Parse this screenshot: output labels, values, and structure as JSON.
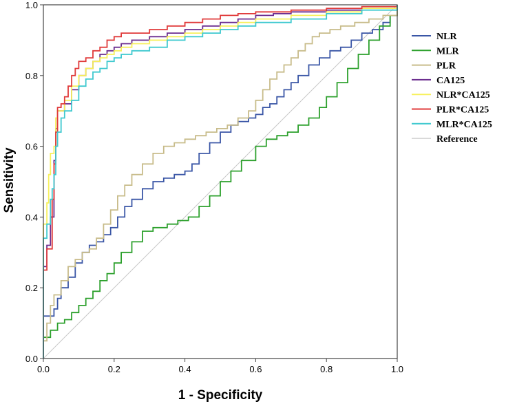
{
  "chart_data": {
    "type": "line",
    "title": "",
    "xlabel": "1 - Specificity",
    "ylabel": "Sensitivity",
    "xlim": [
      0,
      1
    ],
    "ylim": [
      0,
      1
    ],
    "x_ticks": [
      "0.0",
      "0.2",
      "0.4",
      "0.6",
      "0.8",
      "1.0"
    ],
    "y_ticks": [
      "0.0",
      "0.2",
      "0.4",
      "0.6",
      "0.8",
      "1.0"
    ],
    "grid": false,
    "legend_position": "right",
    "series": [
      {
        "name": "NLR",
        "color": "#3a56a6",
        "points": [
          [
            0,
            0
          ],
          [
            0,
            0.12
          ],
          [
            0.02,
            0.12
          ],
          [
            0.03,
            0.14
          ],
          [
            0.04,
            0.17
          ],
          [
            0.05,
            0.2
          ],
          [
            0.07,
            0.23
          ],
          [
            0.09,
            0.27
          ],
          [
            0.11,
            0.3
          ],
          [
            0.13,
            0.32
          ],
          [
            0.15,
            0.33
          ],
          [
            0.17,
            0.35
          ],
          [
            0.19,
            0.37
          ],
          [
            0.21,
            0.4
          ],
          [
            0.23,
            0.43
          ],
          [
            0.25,
            0.45
          ],
          [
            0.28,
            0.48
          ],
          [
            0.31,
            0.5
          ],
          [
            0.34,
            0.51
          ],
          [
            0.37,
            0.52
          ],
          [
            0.4,
            0.53
          ],
          [
            0.42,
            0.55
          ],
          [
            0.44,
            0.58
          ],
          [
            0.47,
            0.61
          ],
          [
            0.5,
            0.64
          ],
          [
            0.53,
            0.66
          ],
          [
            0.55,
            0.67
          ],
          [
            0.58,
            0.68
          ],
          [
            0.6,
            0.69
          ],
          [
            0.62,
            0.71
          ],
          [
            0.64,
            0.72
          ],
          [
            0.66,
            0.74
          ],
          [
            0.68,
            0.76
          ],
          [
            0.7,
            0.78
          ],
          [
            0.72,
            0.8
          ],
          [
            0.75,
            0.83
          ],
          [
            0.78,
            0.85
          ],
          [
            0.81,
            0.87
          ],
          [
            0.84,
            0.88
          ],
          [
            0.87,
            0.9
          ],
          [
            0.9,
            0.92
          ],
          [
            0.93,
            0.93
          ],
          [
            0.96,
            0.95
          ],
          [
            0.98,
            0.97
          ],
          [
            1,
            0.98
          ]
        ]
      },
      {
        "name": "MLR",
        "color": "#2ca02c",
        "points": [
          [
            0,
            0
          ],
          [
            0,
            0.06
          ],
          [
            0.02,
            0.08
          ],
          [
            0.04,
            0.1
          ],
          [
            0.06,
            0.11
          ],
          [
            0.08,
            0.13
          ],
          [
            0.1,
            0.15
          ],
          [
            0.12,
            0.17
          ],
          [
            0.14,
            0.19
          ],
          [
            0.16,
            0.22
          ],
          [
            0.18,
            0.24
          ],
          [
            0.2,
            0.27
          ],
          [
            0.22,
            0.3
          ],
          [
            0.25,
            0.33
          ],
          [
            0.28,
            0.36
          ],
          [
            0.31,
            0.37
          ],
          [
            0.35,
            0.38
          ],
          [
            0.38,
            0.39
          ],
          [
            0.41,
            0.4
          ],
          [
            0.44,
            0.43
          ],
          [
            0.47,
            0.46
          ],
          [
            0.5,
            0.5
          ],
          [
            0.53,
            0.53
          ],
          [
            0.56,
            0.56
          ],
          [
            0.6,
            0.6
          ],
          [
            0.63,
            0.62
          ],
          [
            0.66,
            0.63
          ],
          [
            0.69,
            0.64
          ],
          [
            0.72,
            0.66
          ],
          [
            0.75,
            0.68
          ],
          [
            0.78,
            0.71
          ],
          [
            0.8,
            0.74
          ],
          [
            0.83,
            0.78
          ],
          [
            0.86,
            0.82
          ],
          [
            0.89,
            0.86
          ],
          [
            0.92,
            0.9
          ],
          [
            0.95,
            0.94
          ],
          [
            0.98,
            0.97
          ],
          [
            1,
            1
          ]
        ]
      },
      {
        "name": "PLR",
        "color": "#c8bc8a",
        "points": [
          [
            0,
            0
          ],
          [
            0,
            0.05
          ],
          [
            0.01,
            0.1
          ],
          [
            0.02,
            0.15
          ],
          [
            0.03,
            0.18
          ],
          [
            0.05,
            0.22
          ],
          [
            0.07,
            0.26
          ],
          [
            0.09,
            0.28
          ],
          [
            0.11,
            0.3
          ],
          [
            0.13,
            0.31
          ],
          [
            0.15,
            0.34
          ],
          [
            0.17,
            0.38
          ],
          [
            0.19,
            0.42
          ],
          [
            0.21,
            0.46
          ],
          [
            0.23,
            0.49
          ],
          [
            0.25,
            0.52
          ],
          [
            0.28,
            0.55
          ],
          [
            0.31,
            0.58
          ],
          [
            0.34,
            0.6
          ],
          [
            0.37,
            0.61
          ],
          [
            0.4,
            0.62
          ],
          [
            0.43,
            0.63
          ],
          [
            0.46,
            0.64
          ],
          [
            0.49,
            0.65
          ],
          [
            0.52,
            0.66
          ],
          [
            0.55,
            0.68
          ],
          [
            0.58,
            0.7
          ],
          [
            0.6,
            0.73
          ],
          [
            0.62,
            0.76
          ],
          [
            0.64,
            0.79
          ],
          [
            0.66,
            0.81
          ],
          [
            0.68,
            0.83
          ],
          [
            0.7,
            0.85
          ],
          [
            0.72,
            0.87
          ],
          [
            0.74,
            0.89
          ],
          [
            0.76,
            0.91
          ],
          [
            0.78,
            0.92
          ],
          [
            0.81,
            0.93
          ],
          [
            0.84,
            0.94
          ],
          [
            0.88,
            0.95
          ],
          [
            0.92,
            0.96
          ],
          [
            0.96,
            0.97
          ],
          [
            1,
            1
          ]
        ]
      },
      {
        "name": "CA125",
        "color": "#6b2d8f",
        "points": [
          [
            0,
            0
          ],
          [
            0,
            0.26
          ],
          [
            0.01,
            0.26
          ],
          [
            0.01,
            0.32
          ],
          [
            0.02,
            0.4
          ],
          [
            0.03,
            0.56
          ],
          [
            0.035,
            0.65
          ],
          [
            0.04,
            0.7
          ],
          [
            0.06,
            0.72
          ],
          [
            0.08,
            0.76
          ],
          [
            0.1,
            0.8
          ],
          [
            0.12,
            0.82
          ],
          [
            0.14,
            0.84
          ],
          [
            0.16,
            0.86
          ],
          [
            0.18,
            0.87
          ],
          [
            0.2,
            0.88
          ],
          [
            0.22,
            0.89
          ],
          [
            0.25,
            0.9
          ],
          [
            0.3,
            0.91
          ],
          [
            0.35,
            0.92
          ],
          [
            0.4,
            0.93
          ],
          [
            0.45,
            0.94
          ],
          [
            0.5,
            0.95
          ],
          [
            0.55,
            0.96
          ],
          [
            0.6,
            0.97
          ],
          [
            0.65,
            0.975
          ],
          [
            0.7,
            0.98
          ],
          [
            0.8,
            0.985
          ],
          [
            0.9,
            0.99
          ],
          [
            1,
            1
          ]
        ]
      },
      {
        "name": "NLR*CA125",
        "color": "#f7f05c",
        "points": [
          [
            0,
            0
          ],
          [
            0,
            0.38
          ],
          [
            0.01,
            0.44
          ],
          [
            0.015,
            0.52
          ],
          [
            0.02,
            0.58
          ],
          [
            0.03,
            0.6
          ],
          [
            0.035,
            0.68
          ],
          [
            0.04,
            0.7
          ],
          [
            0.06,
            0.73
          ],
          [
            0.08,
            0.77
          ],
          [
            0.1,
            0.8
          ],
          [
            0.12,
            0.82
          ],
          [
            0.14,
            0.84
          ],
          [
            0.16,
            0.85
          ],
          [
            0.18,
            0.86
          ],
          [
            0.2,
            0.87
          ],
          [
            0.22,
            0.88
          ],
          [
            0.25,
            0.89
          ],
          [
            0.3,
            0.9
          ],
          [
            0.35,
            0.91
          ],
          [
            0.4,
            0.92
          ],
          [
            0.45,
            0.93
          ],
          [
            0.5,
            0.94
          ],
          [
            0.55,
            0.95
          ],
          [
            0.6,
            0.96
          ],
          [
            0.7,
            0.97
          ],
          [
            0.8,
            0.98
          ],
          [
            0.9,
            0.99
          ],
          [
            1,
            1
          ]
        ]
      },
      {
        "name": "PLR*CA125",
        "color": "#e03a3a",
        "points": [
          [
            0,
            0
          ],
          [
            0,
            0.25
          ],
          [
            0.01,
            0.25
          ],
          [
            0.01,
            0.31
          ],
          [
            0.02,
            0.31
          ],
          [
            0.025,
            0.45
          ],
          [
            0.03,
            0.55
          ],
          [
            0.035,
            0.64
          ],
          [
            0.04,
            0.71
          ],
          [
            0.05,
            0.72
          ],
          [
            0.06,
            0.74
          ],
          [
            0.07,
            0.77
          ],
          [
            0.08,
            0.8
          ],
          [
            0.09,
            0.82
          ],
          [
            0.1,
            0.84
          ],
          [
            0.12,
            0.85
          ],
          [
            0.14,
            0.87
          ],
          [
            0.16,
            0.88
          ],
          [
            0.18,
            0.9
          ],
          [
            0.2,
            0.91
          ],
          [
            0.22,
            0.92
          ],
          [
            0.25,
            0.92
          ],
          [
            0.3,
            0.93
          ],
          [
            0.35,
            0.94
          ],
          [
            0.4,
            0.95
          ],
          [
            0.45,
            0.96
          ],
          [
            0.5,
            0.97
          ],
          [
            0.55,
            0.975
          ],
          [
            0.6,
            0.98
          ],
          [
            0.7,
            0.985
          ],
          [
            0.8,
            0.99
          ],
          [
            0.9,
            0.995
          ],
          [
            1,
            1
          ]
        ]
      },
      {
        "name": "MLR*CA125",
        "color": "#3fc9cf",
        "points": [
          [
            0,
            0
          ],
          [
            0,
            0.34
          ],
          [
            0.01,
            0.34
          ],
          [
            0.01,
            0.38
          ],
          [
            0.02,
            0.45
          ],
          [
            0.025,
            0.48
          ],
          [
            0.03,
            0.52
          ],
          [
            0.035,
            0.6
          ],
          [
            0.04,
            0.64
          ],
          [
            0.05,
            0.68
          ],
          [
            0.06,
            0.7
          ],
          [
            0.08,
            0.73
          ],
          [
            0.1,
            0.77
          ],
          [
            0.12,
            0.79
          ],
          [
            0.14,
            0.81
          ],
          [
            0.16,
            0.82
          ],
          [
            0.18,
            0.84
          ],
          [
            0.2,
            0.85
          ],
          [
            0.22,
            0.86
          ],
          [
            0.25,
            0.87
          ],
          [
            0.3,
            0.88
          ],
          [
            0.35,
            0.9
          ],
          [
            0.4,
            0.91
          ],
          [
            0.45,
            0.92
          ],
          [
            0.5,
            0.93
          ],
          [
            0.55,
            0.94
          ],
          [
            0.6,
            0.95
          ],
          [
            0.7,
            0.96
          ],
          [
            0.8,
            0.975
          ],
          [
            0.9,
            0.985
          ],
          [
            1,
            1
          ]
        ]
      },
      {
        "name": "Reference",
        "color": "#c8c8c8",
        "points": [
          [
            0,
            0
          ],
          [
            1,
            1
          ]
        ]
      }
    ]
  }
}
